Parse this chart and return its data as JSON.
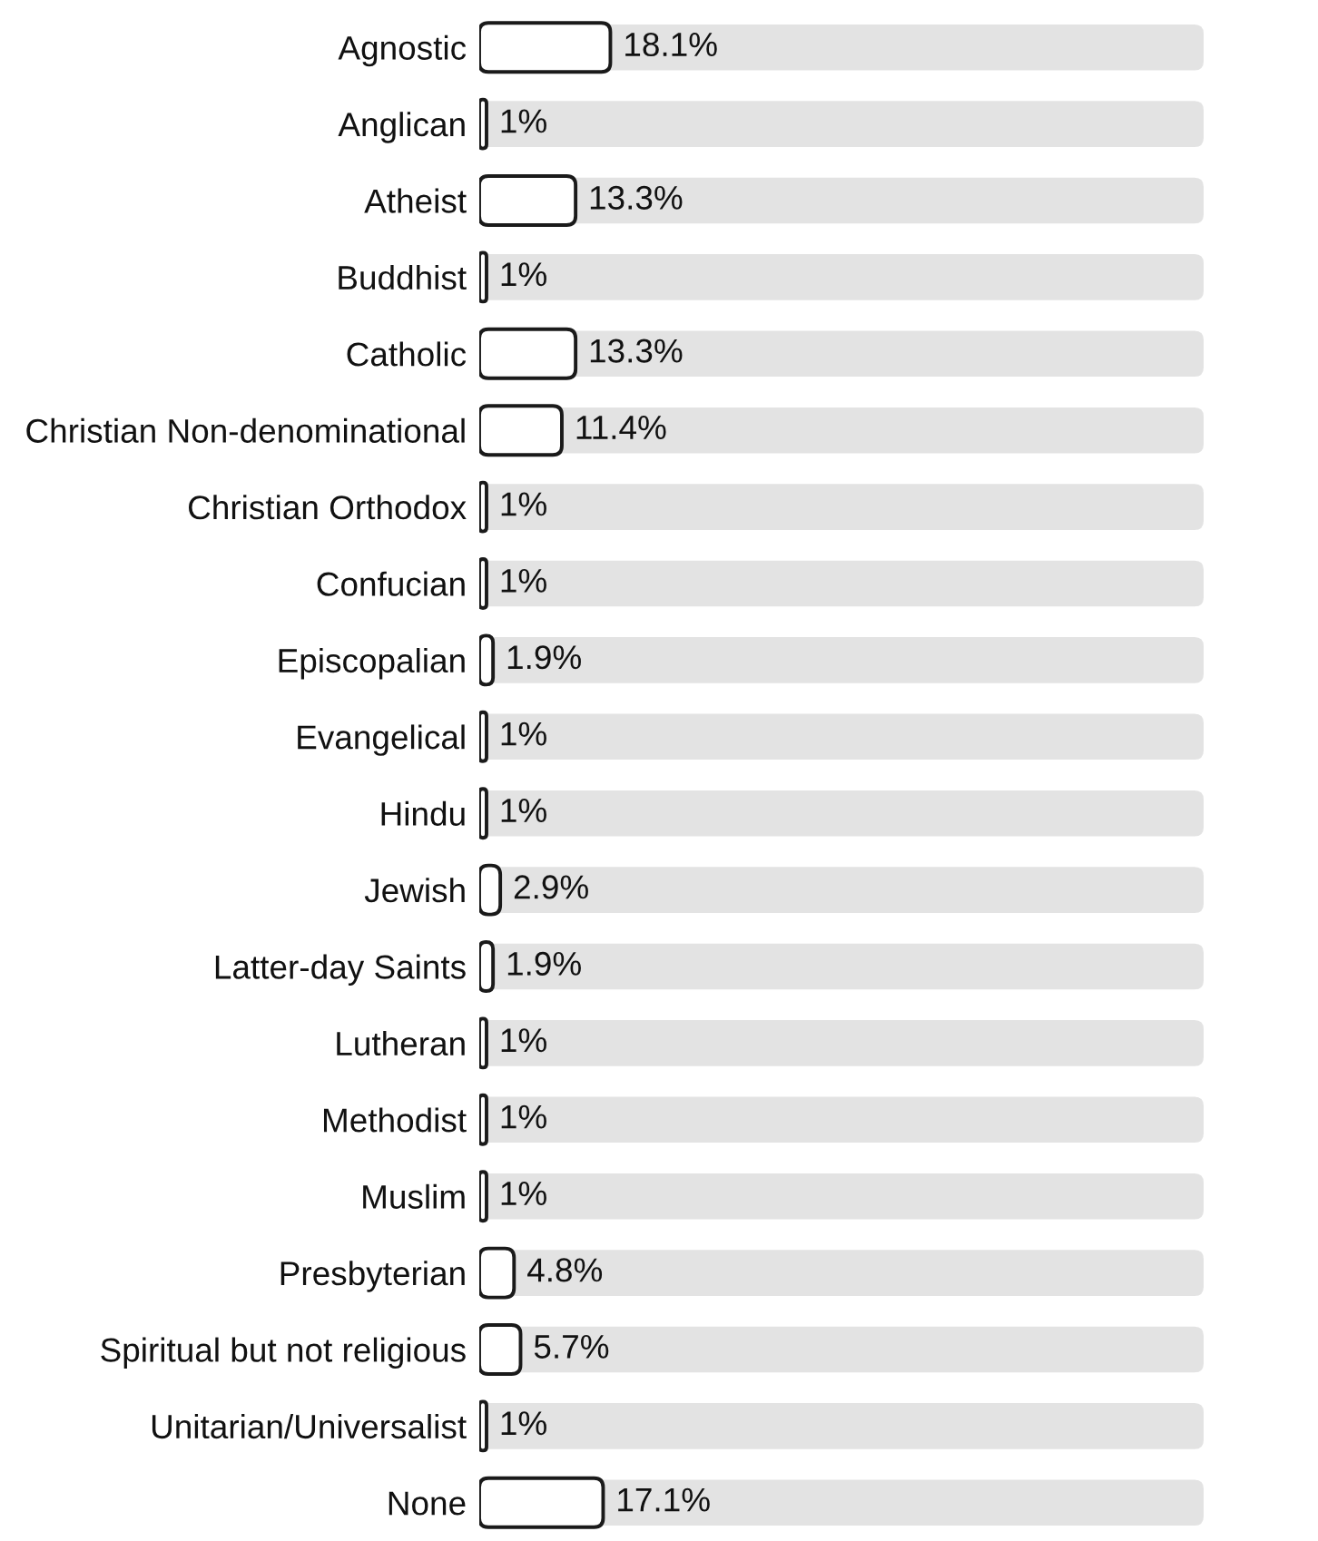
{
  "chart_data": {
    "type": "bar",
    "orientation": "horizontal",
    "categories": [
      "Agnostic",
      "Anglican",
      "Atheist",
      "Buddhist",
      "Catholic",
      "Christian Non-denominational",
      "Christian Orthodox",
      "Confucian",
      "Episcopalian",
      "Evangelical",
      "Hindu",
      "Jewish",
      "Latter-day Saints",
      "Lutheran",
      "Methodist",
      "Muslim",
      "Presbyterian",
      "Spiritual but not religious",
      "Unitarian/Universalist",
      "None"
    ],
    "values": [
      18.1,
      1,
      13.3,
      1,
      13.3,
      11.4,
      1,
      1,
      1.9,
      1,
      1,
      2.9,
      1.9,
      1,
      1,
      1,
      4.8,
      5.7,
      1,
      17.1
    ],
    "value_labels": [
      "18.1%",
      "1%",
      "13.3%",
      "1%",
      "13.3%",
      "11.4%",
      "1%",
      "1%",
      "1.9%",
      "1%",
      "1%",
      "2.9%",
      "1.9%",
      "1%",
      "1%",
      "1%",
      "4.8%",
      "5.7%",
      "1%",
      "17.1%"
    ],
    "color": "#ffffff",
    "xlim": [
      0,
      100
    ],
    "tick_labels": "y"
  }
}
